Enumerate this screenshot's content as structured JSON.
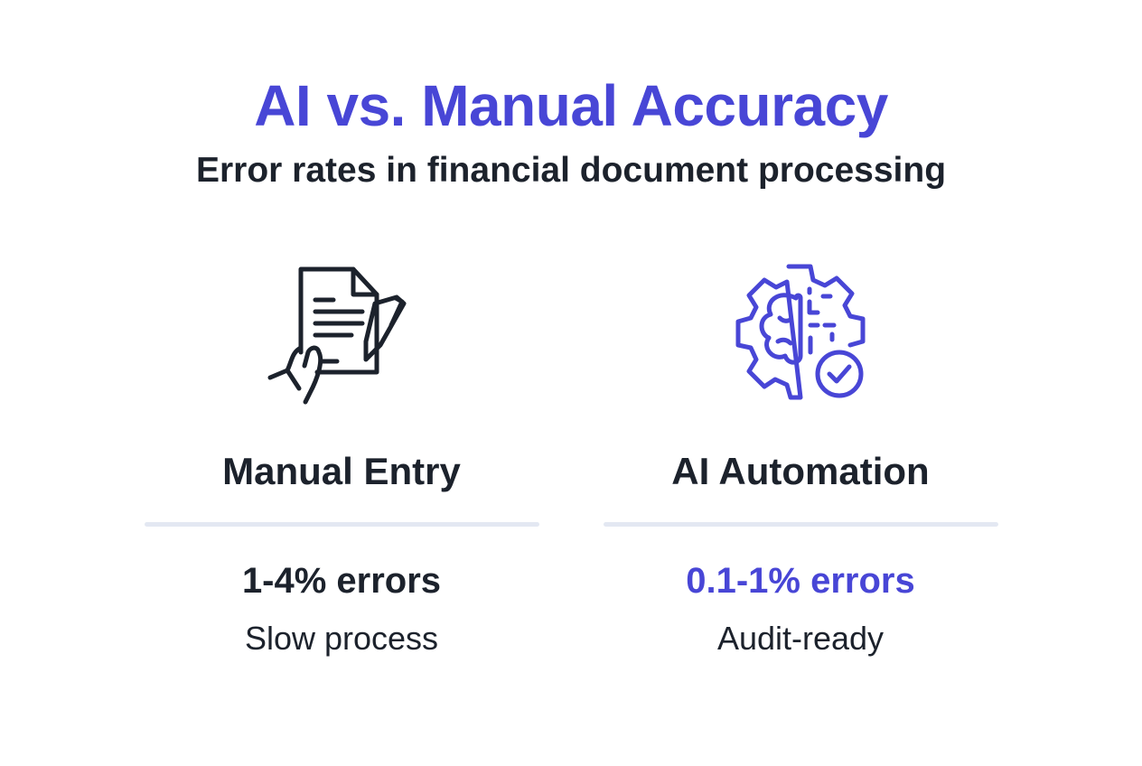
{
  "header": {
    "title": "AI vs. Manual Accuracy",
    "subtitle": "Error rates in financial document processing"
  },
  "columns": [
    {
      "icon": "document-hand-pen-icon",
      "heading": "Manual Entry",
      "value": "1-4% errors",
      "note": "Slow process",
      "color": "#1c222c"
    },
    {
      "icon": "gear-brain-check-icon",
      "heading": "AI Automation",
      "value": "0.1-1% errors",
      "note": "Audit-ready",
      "color": "#4846d6"
    }
  ],
  "colors": {
    "accent": "#4846d6",
    "text": "#1c222c",
    "divider": "#e3e8f2"
  }
}
